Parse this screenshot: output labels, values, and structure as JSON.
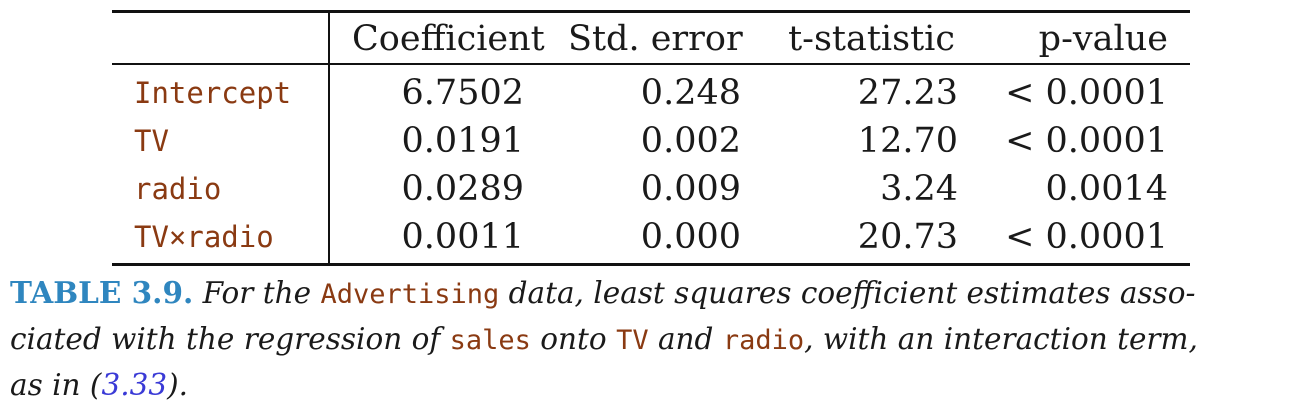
{
  "table": {
    "headers": [
      "",
      "Coefficient",
      "Std. error",
      "t-statistic",
      "p-value"
    ],
    "rows": [
      {
        "term": "Intercept",
        "coef": "6.7502",
        "se": "0.248",
        "t": "27.23",
        "p": "< 0.0001"
      },
      {
        "term": "TV",
        "coef": "0.0191",
        "se": "0.002",
        "t": "12.70",
        "p": "< 0.0001"
      },
      {
        "term": "radio",
        "coef": "0.0289",
        "se": "0.009",
        "t": "3.24",
        "p": "0.0014"
      },
      {
        "term": "TV×radio",
        "coef": "0.0011",
        "se": "0.000",
        "t": "20.73",
        "p": "< 0.0001"
      }
    ]
  },
  "caption": {
    "label": "TABLE 3.9.",
    "t1": " For the ",
    "m1": "Advertising",
    "t2": " data, least squares coefficient estimates asso-",
    "t3": "ciated with the regression of ",
    "m2": "sales",
    "t4": " onto ",
    "m3": "TV",
    "t5": " and ",
    "m4": "radio",
    "t6": ", with an interaction term,",
    "t7": "as in (",
    "ref": "3.33",
    "t8": ")."
  },
  "colors": {
    "code": "#8a3a12",
    "caption_label": "#2f86bf",
    "reference_link": "#3a3ad6",
    "rules": "#111111"
  }
}
